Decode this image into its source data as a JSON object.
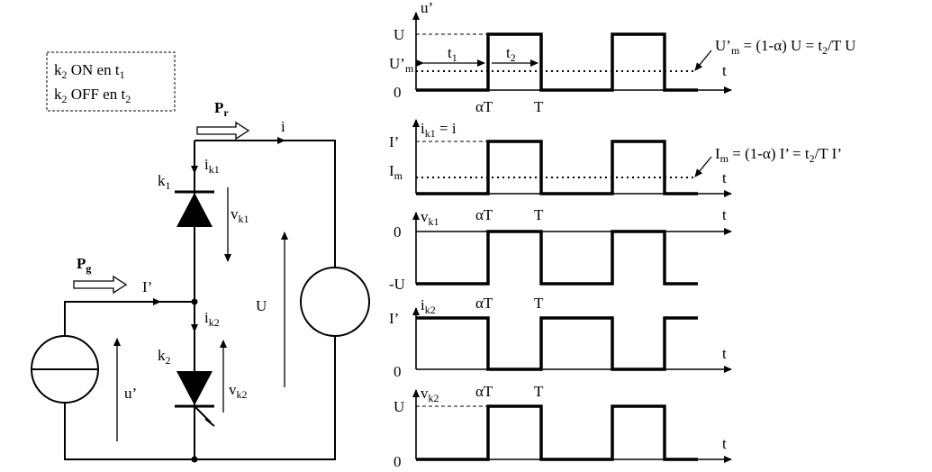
{
  "legend": {
    "line1": "k",
    "line1_sub": "2",
    "line1_rest": " ON en t",
    "line1_sub2": "1",
    "line2": "k",
    "line2_sub": "2",
    "line2_rest": " OFF en t",
    "line2_sub2": "2"
  },
  "circuit": {
    "pr": "P",
    "pr_sub": "r",
    "pg": "P",
    "pg_sub": "g",
    "i": "i",
    "iprime": "I’",
    "ik1": "i",
    "ik1_sub": "k1",
    "ik2": "i",
    "ik2_sub": "k2",
    "k1": "k",
    "k1_sub": "1",
    "k2": "k",
    "k2_sub": "2",
    "vk1": "v",
    "vk1_sub": "k1",
    "vk2": "v",
    "vk2_sub": "k2",
    "U": "U",
    "uprime": "u’"
  },
  "waveforms": {
    "p1": {
      "ylabel": "u’",
      "top": "U",
      "mid": "U’",
      "mid_sub": "m",
      "zero": "0",
      "t": "t",
      "t1": "t",
      "t1_sub": "1",
      "t2": "t",
      "t2_sub": "2",
      "aT": "αT",
      "T": "T",
      "eq_a": "U’",
      "eq_a_sub": "m",
      "eq_b": " = (1-α) U  = t",
      "eq_b_sub": "2",
      "eq_c": "/T U"
    },
    "p2": {
      "ylabel": "i",
      "ylabel_sub": "k1",
      "ylabel_rest": " = i",
      "top": "I’",
      "mid": "I",
      "mid_sub": "m",
      "t": "t",
      "eq_a": "I",
      "eq_a_sub": "m",
      "eq_b": " = (1-α) I’ = t",
      "eq_b_sub": "2",
      "eq_c": "/T I’"
    },
    "p3": {
      "ylabel": "v",
      "ylabel_sub": "k1",
      "zero": "0",
      "bottom": "-U",
      "aT": "αT",
      "T": "T",
      "t": "t"
    },
    "p4": {
      "ylabel": "i",
      "ylabel_sub": "k2",
      "top": "I’",
      "zero": "0",
      "aT": "αT",
      "T": "T",
      "t": "t"
    },
    "p5": {
      "ylabel": "v",
      "ylabel_sub": "k2",
      "top": "U",
      "zero": "0",
      "aT": "αT",
      "T": "T",
      "t": "t"
    }
  }
}
